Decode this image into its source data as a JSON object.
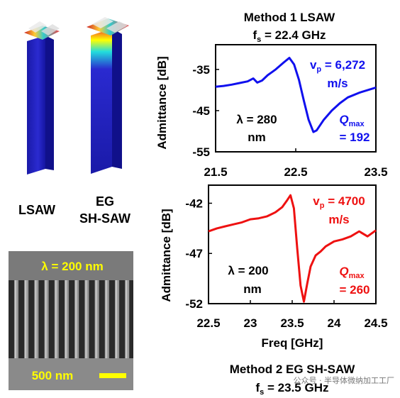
{
  "left_panel": {
    "label_lsaw": "LSAW",
    "label_eg_line1": "EG",
    "label_eg_line2": "SH-SAW",
    "sem_lambda": "λ = 200 nm",
    "sem_scale": "500 nm"
  },
  "watermark": "公众号 · 半导体微纳加工工厂",
  "colors": {
    "top_series": "#1010ee",
    "bottom_series": "#ee1111",
    "annotation_text": "#000000",
    "sem_text": "#ffff00"
  },
  "chart_data": [
    {
      "type": "line",
      "title_line1": "Method 1 LSAW",
      "title_line2_prefix": "f",
      "title_line2_sub": "s",
      "title_line2_suffix": " = 22.4 GHz",
      "xlabel": "",
      "ylabel": "Admittance [dB]",
      "xlim": [
        21.5,
        23.5
      ],
      "ylim": [
        -55,
        -29
      ],
      "xticks": [
        "21.5",
        "22.5",
        "23.5"
      ],
      "yticks": [
        "-35",
        "-45",
        "-55"
      ],
      "grid": false,
      "series": [
        {
          "color": "#1010ee",
          "x": [
            21.5,
            21.6,
            21.7,
            21.8,
            21.9,
            21.97,
            22.02,
            22.08,
            22.15,
            22.25,
            22.35,
            22.42,
            22.48,
            22.54,
            22.6,
            22.66,
            22.72,
            22.76,
            22.85,
            22.95,
            23.05,
            23.15,
            23.3,
            23.5
          ],
          "y": [
            -39.2,
            -39.0,
            -38.7,
            -38.3,
            -37.9,
            -37.2,
            -38.2,
            -37.7,
            -36.4,
            -35.0,
            -33.3,
            -32.2,
            -33.8,
            -37.5,
            -42.5,
            -47.2,
            -50.2,
            -49.8,
            -47.2,
            -45.0,
            -43.2,
            -41.8,
            -40.6,
            -39.4
          ]
        }
      ],
      "annotations": {
        "lambda_line1": "λ = 280",
        "lambda_line2": "nm",
        "vp_prefix": "v",
        "vp_sub": "p",
        "vp_suffix": " = 6,272",
        "vp_unit": "m/s",
        "q_prefix": "Q",
        "q_sub": "max",
        "q_value": "= 192"
      }
    },
    {
      "type": "line",
      "title_line1": "Method 2 EG SH-SAW",
      "title_line2_prefix": "f",
      "title_line2_sub": "s",
      "title_line2_suffix": " = 23.5 GHz",
      "xlabel": "Freq [GHz]",
      "ylabel": "Admittance [dB]",
      "xlim": [
        22.5,
        24.5
      ],
      "ylim": [
        -52,
        -40.2
      ],
      "xticks": [
        "22.5",
        "23",
        "23.5",
        "24",
        "24.5"
      ],
      "yticks": [
        "-42",
        "-47",
        "-52"
      ],
      "grid": false,
      "series": [
        {
          "color": "#ee1111",
          "x": [
            22.5,
            22.6,
            22.7,
            22.8,
            22.9,
            23.0,
            23.1,
            23.2,
            23.3,
            23.38,
            23.44,
            23.48,
            23.52,
            23.56,
            23.6,
            23.64,
            23.68,
            23.72,
            23.78,
            23.84,
            23.9,
            24.0,
            24.1,
            24.2,
            24.3,
            24.4,
            24.5
          ],
          "y": [
            -44.8,
            -44.5,
            -44.3,
            -44.1,
            -43.9,
            -43.6,
            -43.5,
            -43.3,
            -42.9,
            -42.4,
            -41.7,
            -41.2,
            -42.5,
            -46.5,
            -50.2,
            -51.8,
            -50.0,
            -48.3,
            -47.2,
            -46.8,
            -46.3,
            -45.8,
            -45.6,
            -45.3,
            -44.8,
            -45.3,
            -44.7
          ]
        }
      ],
      "annotations": {
        "lambda_line1": "λ = 200",
        "lambda_line2": "nm",
        "vp_prefix": "v",
        "vp_sub": "p",
        "vp_suffix": " = 4700",
        "vp_unit": "m/s",
        "q_prefix": "Q",
        "q_sub": "max",
        "q_value": "= 260"
      }
    }
  ]
}
